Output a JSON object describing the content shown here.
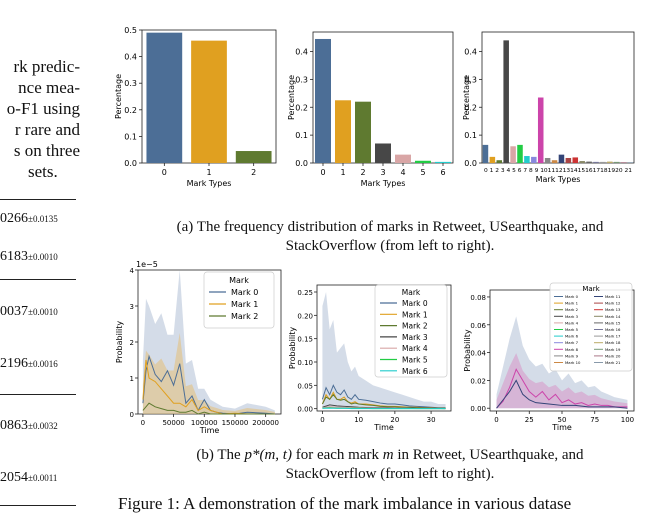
{
  "left_text": {
    "lines": [
      "rk predic-",
      "nce mea-",
      "o-F1 using",
      "r rare and",
      "s on three",
      "sets."
    ],
    "values": [
      {
        "main": "0266",
        "sub": "±0.0135"
      },
      {
        "main": "6183",
        "sub": "±0.0010"
      },
      {
        "main": "0037",
        "sub": "±0.0010"
      },
      {
        "main": "2196",
        "sub": "±0.0016"
      },
      {
        "main": "0863",
        "sub": "±0.0032"
      },
      {
        "main": "2054",
        "sub": "±0.0011"
      }
    ]
  },
  "captions": {
    "a_line1": "(a) The frequency distribution of marks in Retweet, USearthquake, and",
    "a_line2": "StackOverflow (from left to right).",
    "b_prefix": "(b) The ",
    "b_math": "p*(m, t)",
    "b_mid": " for each mark ",
    "b_m": "m",
    "b_suffix": " in Retweet, USearthquake, and",
    "b_line2": "StackOverflow (from left to right).",
    "figure": "Figure 1: A demonstration of the mark imbalance in various datase"
  },
  "chart_data": [
    {
      "type": "bar",
      "ylabel": "Percentage",
      "xlabel": "Mark Types",
      "categories": [
        "0",
        "1",
        "2"
      ],
      "values": [
        0.49,
        0.46,
        0.045
      ],
      "colors": [
        "#4c6e96",
        "#e0a020",
        "#5f7a30"
      ],
      "ylim": [
        0,
        0.5
      ],
      "yticks": [
        "0.0",
        "0.1",
        "0.2",
        "0.3",
        "0.4",
        "0.5"
      ]
    },
    {
      "type": "bar",
      "ylabel": "Percentage",
      "xlabel": "Mark Types",
      "categories": [
        "0",
        "1",
        "2",
        "3",
        "4",
        "5",
        "6"
      ],
      "values": [
        0.445,
        0.225,
        0.22,
        0.07,
        0.03,
        0.008,
        0.004
      ],
      "colors": [
        "#4c6e96",
        "#e0a020",
        "#5f7a30",
        "#474747",
        "#d9a6a6",
        "#22cc44",
        "#22cccc"
      ],
      "ylim": [
        0,
        0.47
      ],
      "yticks": [
        "0.0",
        "0.1",
        "0.2",
        "0.3",
        "0.4"
      ]
    },
    {
      "type": "bar",
      "ylabel": "Percentage",
      "xlabel": "Mark Types",
      "categories": [
        "0",
        "1",
        "2",
        "3",
        "4",
        "5",
        "6",
        "7",
        "8",
        "9",
        "10",
        "11",
        "12",
        "13",
        "14",
        "15",
        "16",
        "17",
        "18",
        "19",
        "20",
        "21"
      ],
      "tick_text": "0 1 2 3 4 5 6 7 8 9 1011121314151617181920 21",
      "values": [
        0.065,
        0.022,
        0.01,
        0.44,
        0.06,
        0.065,
        0.025,
        0.022,
        0.235,
        0.018,
        0.01,
        0.03,
        0.018,
        0.02,
        0.007,
        0.005,
        0.004,
        0.004,
        0.005,
        0.004,
        0.003,
        0.003
      ],
      "colors": [
        "#4c6e96",
        "#e0a020",
        "#5f7a30",
        "#474747",
        "#d9a6a6",
        "#22cc44",
        "#22cccc",
        "#8888dd",
        "#cc44aa",
        "#888888",
        "#cc8844",
        "#334477",
        "#aa4444",
        "#cc3333",
        "#888866",
        "#666666",
        "#777799",
        "#999999",
        "#bbaa66",
        "#779977",
        "#aa7788",
        "#8899aa"
      ],
      "ylim": [
        0,
        0.47
      ],
      "yticks": [
        "0.0",
        "0.1",
        "0.2",
        "0.3",
        "0.4"
      ]
    },
    {
      "type": "line",
      "ylabel": "Probability",
      "xlabel": "Time",
      "scale_label": "1e−5",
      "legend_title": "Mark",
      "xticks": [
        "0",
        "50000",
        "100000",
        "150000",
        "200000"
      ],
      "xtick_values": [
        0,
        50000,
        100000,
        150000,
        200000
      ],
      "xlim": [
        -8000,
        225000
      ],
      "yticks": [
        "0",
        "1",
        "2",
        "3",
        "4"
      ],
      "ylim": [
        0,
        4
      ],
      "series": [
        {
          "name": "Mark 0",
          "color": "#4c6e96",
          "x": [
            0,
            5000,
            10000,
            20000,
            30000,
            40000,
            50000,
            60000,
            70000,
            80000,
            90000,
            100000,
            110000,
            120000,
            130000,
            150000,
            170000,
            200000,
            215000
          ],
          "y": [
            0.3,
            1.2,
            1.6,
            1.1,
            0.9,
            1.2,
            0.8,
            1.4,
            0.3,
            0.5,
            0.1,
            0.4,
            0.1,
            0.05,
            0.02,
            0.0,
            0.05,
            0.02,
            0.0
          ]
        },
        {
          "name": "Mark 1",
          "color": "#e0a020",
          "x": [
            0,
            5000,
            10000,
            20000,
            30000,
            40000,
            50000,
            60000,
            70000,
            80000,
            90000,
            100000,
            110000,
            120000,
            130000,
            150000,
            170000,
            200000,
            215000
          ],
          "y": [
            0.4,
            1.5,
            1.0,
            0.9,
            0.7,
            0.5,
            0.3,
            0.3,
            0.2,
            0.4,
            0.1,
            0.2,
            0.1,
            0.05,
            0.0,
            0.02,
            0.0,
            0.0,
            0.0
          ]
        },
        {
          "name": "Mark 2",
          "color": "#5f7a30",
          "x": [
            0,
            5000,
            10000,
            20000,
            30000,
            40000,
            50000,
            60000,
            70000,
            80000,
            90000,
            100000,
            110000,
            120000,
            130000,
            150000,
            170000,
            200000,
            215000
          ],
          "y": [
            0.1,
            0.2,
            0.3,
            0.2,
            0.15,
            0.1,
            0.1,
            0.05,
            0.05,
            0.1,
            0.0,
            0.05,
            0.0,
            0.0,
            0.0,
            0.0,
            0.0,
            0.0,
            0.0
          ]
        }
      ],
      "band_upper": [
        1.5,
        3.2,
        3.0,
        2.5,
        2.8,
        2.2,
        2.2,
        4.1,
        1.4,
        1.5,
        0.7,
        0.7,
        0.4,
        0.3,
        0.2,
        0.15,
        0.3,
        0.2,
        0.1
      ]
    },
    {
      "type": "line",
      "ylabel": "Probability",
      "xlabel": "Time",
      "legend_title": "Mark",
      "xticks": [
        "0",
        "10",
        "20",
        "30"
      ],
      "xtick_values": [
        0,
        10,
        20,
        30
      ],
      "xlim": [
        -1.5,
        35.5
      ],
      "yticks": [
        "0.00",
        "0.05",
        "0.10",
        "0.15",
        "0.20",
        "0.25"
      ],
      "ylim": [
        -0.005,
        0.265
      ],
      "series": [
        {
          "name": "Mark 0",
          "color": "#4c6e96",
          "x": [
            0,
            1,
            2,
            3,
            4,
            5,
            6,
            7,
            8,
            9,
            10,
            12,
            14,
            16,
            18,
            20,
            22,
            24,
            26,
            28,
            30,
            32,
            34
          ],
          "y": [
            0.02,
            0.045,
            0.03,
            0.05,
            0.035,
            0.03,
            0.04,
            0.025,
            0.02,
            0.03,
            0.02,
            0.018,
            0.015,
            0.012,
            0.01,
            0.01,
            0.008,
            0.006,
            0.005,
            0.004,
            0.003,
            0.002,
            0.002
          ]
        },
        {
          "name": "Mark 1",
          "color": "#e0a020",
          "x": [
            0,
            1,
            2,
            3,
            4,
            5,
            6,
            7,
            8,
            9,
            10,
            12,
            14,
            16,
            18,
            20,
            22,
            24,
            26,
            28,
            30,
            32,
            34
          ],
          "y": [
            0.01,
            0.03,
            0.02,
            0.035,
            0.02,
            0.02,
            0.025,
            0.015,
            0.012,
            0.015,
            0.01,
            0.01,
            0.008,
            0.006,
            0.005,
            0.005,
            0.004,
            0.003,
            0.003,
            0.002,
            0.002,
            0.001,
            0.001
          ]
        },
        {
          "name": "Mark 2",
          "color": "#5f7a30",
          "x": [
            0,
            1,
            2,
            3,
            4,
            5,
            6,
            7,
            8,
            9,
            10,
            12,
            14,
            16,
            18,
            20,
            22,
            24,
            26,
            28,
            30,
            32,
            34
          ],
          "y": [
            0.01,
            0.025,
            0.02,
            0.03,
            0.02,
            0.018,
            0.02,
            0.015,
            0.01,
            0.012,
            0.01,
            0.008,
            0.007,
            0.005,
            0.004,
            0.004,
            0.003,
            0.003,
            0.002,
            0.002,
            0.001,
            0.001,
            0.001
          ]
        },
        {
          "name": "Mark 3",
          "color": "#474747",
          "x": [
            0,
            2,
            4,
            6,
            8,
            10,
            14,
            18,
            22,
            26,
            30,
            34
          ],
          "y": [
            0.003,
            0.008,
            0.006,
            0.005,
            0.004,
            0.003,
            0.002,
            0.002,
            0.001,
            0.001,
            0.001,
            0.0
          ]
        },
        {
          "name": "Mark 4",
          "color": "#d9a6a6",
          "x": [
            0,
            2,
            4,
            6,
            8,
            10,
            14,
            18,
            22,
            26,
            30,
            34
          ],
          "y": [
            0.002,
            0.004,
            0.003,
            0.003,
            0.002,
            0.002,
            0.001,
            0.001,
            0.001,
            0.0,
            0.0,
            0.0
          ]
        },
        {
          "name": "Mark 5",
          "color": "#22cc44",
          "x": [
            0,
            2,
            4,
            6,
            8,
            10,
            14,
            18,
            22,
            26,
            30,
            34
          ],
          "y": [
            0.001,
            0.002,
            0.001,
            0.001,
            0.001,
            0.001,
            0.0,
            0.0,
            0.0,
            0.0,
            0.0,
            0.0
          ]
        },
        {
          "name": "Mark 6",
          "color": "#22cccc",
          "x": [
            0,
            2,
            4,
            6,
            8,
            10,
            14,
            18,
            22,
            26,
            30,
            34
          ],
          "y": [
            0.001,
            0.001,
            0.001,
            0.001,
            0.0,
            0.0,
            0.0,
            0.0,
            0.0,
            0.0,
            0.0,
            0.0
          ]
        }
      ],
      "band_x": [
        0,
        1,
        2,
        3,
        4,
        5,
        6,
        7,
        8,
        9,
        10,
        12,
        14,
        16,
        18,
        20,
        22,
        24,
        26,
        28,
        30,
        32,
        34
      ],
      "band_upper": [
        0.22,
        0.25,
        0.17,
        0.19,
        0.12,
        0.13,
        0.14,
        0.1,
        0.08,
        0.09,
        0.07,
        0.06,
        0.05,
        0.045,
        0.04,
        0.035,
        0.03,
        0.025,
        0.02,
        0.015,
        0.015,
        0.01,
        0.01
      ]
    },
    {
      "type": "line",
      "ylabel": "Probability",
      "xlabel": "Time",
      "legend_title": "Mark",
      "xticks": [
        "0",
        "25",
        "50",
        "75",
        "100"
      ],
      "xtick_values": [
        0,
        25,
        50,
        75,
        100
      ],
      "xlim": [
        -5,
        105
      ],
      "yticks": [
        "0.00",
        "0.02",
        "0.04",
        "0.06",
        "0.08"
      ],
      "ylim": [
        -0.002,
        0.085
      ],
      "series": [
        {
          "name": "Mark 0",
          "color": "#4c6e96"
        },
        {
          "name": "Mark 1",
          "color": "#e0a020"
        },
        {
          "name": "Mark 2",
          "color": "#5f7a30"
        },
        {
          "name": "Mark 3",
          "color": "#474747"
        },
        {
          "name": "Mark 4",
          "color": "#d9a6a6"
        },
        {
          "name": "Mark 5",
          "color": "#22cc44"
        },
        {
          "name": "Mark 6",
          "color": "#22cccc"
        },
        {
          "name": "Mark 7",
          "color": "#8888dd"
        },
        {
          "name": "Mark 8",
          "color": "#cc44aa",
          "x": [
            0,
            5,
            10,
            15,
            20,
            25,
            30,
            35,
            40,
            45,
            50,
            55,
            60,
            65,
            70,
            75,
            80,
            85,
            90,
            95,
            100
          ],
          "y": [
            0.0,
            0.005,
            0.015,
            0.028,
            0.02,
            0.012,
            0.008,
            0.012,
            0.006,
            0.01,
            0.004,
            0.006,
            0.003,
            0.004,
            0.002,
            0.003,
            0.002,
            0.002,
            0.001,
            0.001,
            0.001
          ]
        },
        {
          "name": "Mark 9",
          "color": "#888888"
        },
        {
          "name": "Mark 10",
          "color": "#cc8844"
        },
        {
          "name": "Mark 11",
          "color": "#334477",
          "x": [
            0,
            5,
            10,
            15,
            20,
            25,
            30,
            40,
            50,
            60,
            70,
            80,
            90,
            100
          ],
          "y": [
            0.0,
            0.006,
            0.012,
            0.02,
            0.01,
            0.006,
            0.004,
            0.003,
            0.002,
            0.002,
            0.001,
            0.001,
            0.001,
            0.0
          ]
        },
        {
          "name": "Mark 12",
          "color": "#aa4444"
        },
        {
          "name": "Mark 13",
          "color": "#cc3333"
        },
        {
          "name": "Mark 14",
          "color": "#888866"
        },
        {
          "name": "Mark 15",
          "color": "#666666"
        },
        {
          "name": "Mark 16",
          "color": "#777799"
        },
        {
          "name": "Mark 17",
          "color": "#999999"
        },
        {
          "name": "Mark 18",
          "color": "#bbaa66"
        },
        {
          "name": "Mark 19",
          "color": "#779977"
        },
        {
          "name": "Mark 20",
          "color": "#aa7788"
        },
        {
          "name": "Mark 21",
          "color": "#8899aa"
        }
      ],
      "band_x": [
        0,
        5,
        10,
        15,
        20,
        25,
        30,
        35,
        40,
        45,
        50,
        55,
        60,
        65,
        70,
        75,
        80,
        85,
        90,
        95,
        100
      ],
      "band_upper": [
        0.01,
        0.03,
        0.05,
        0.066,
        0.045,
        0.035,
        0.03,
        0.032,
        0.025,
        0.028,
        0.02,
        0.025,
        0.018,
        0.02,
        0.015,
        0.016,
        0.012,
        0.01,
        0.008,
        0.007,
        0.006
      ]
    }
  ]
}
